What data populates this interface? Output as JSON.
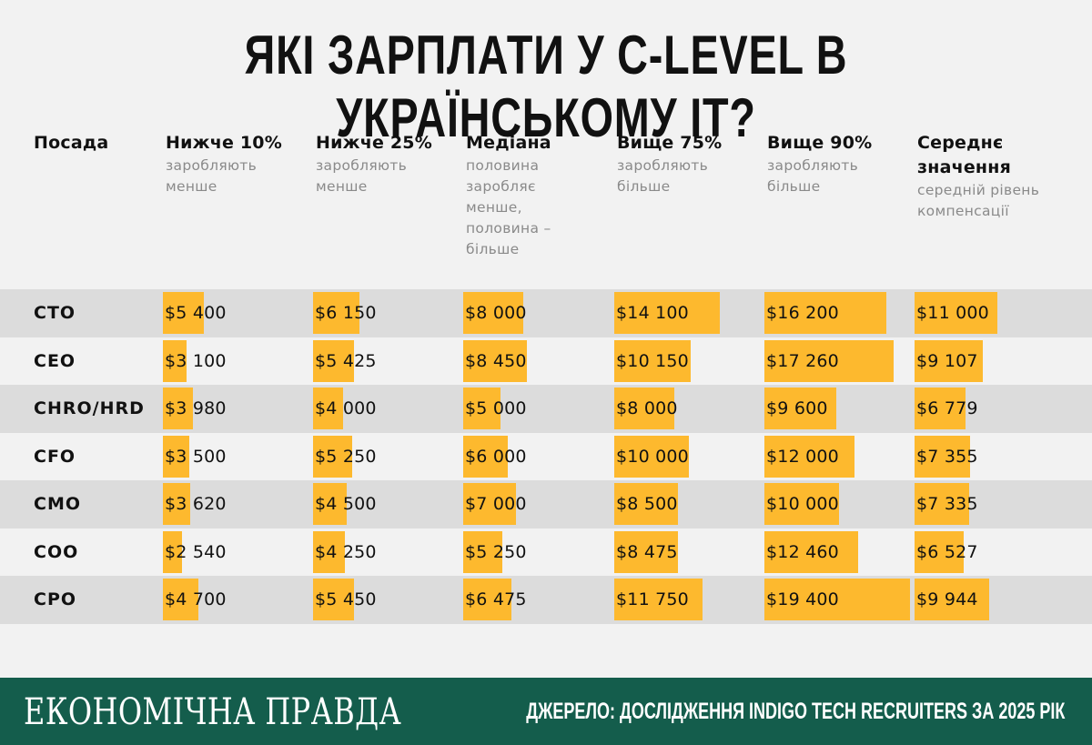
{
  "title": "ЯКІ ЗАРПЛАТИ У C-LEVEL В УКРАЇНСЬКОМУ IT?",
  "columns": [
    {
      "main": "Посада",
      "sub": ""
    },
    {
      "main": "Нижче 10%",
      "sub": "заробляють менше"
    },
    {
      "main": "Нижче 25%",
      "sub": "заробляють менше"
    },
    {
      "main": "Медіана",
      "sub": "половина заробляє менше, половина – більше"
    },
    {
      "main": "Вище 75%",
      "sub": "заробляють більше"
    },
    {
      "main": "Вище 90%",
      "sub": "заробляють більше"
    },
    {
      "main": "Середнє значення",
      "sub": "середній рівень компенсації"
    }
  ],
  "chart_data": {
    "type": "table",
    "title": "ЯКІ ЗАРПЛАТИ У C-LEVEL В УКРАЇНСЬКОМУ IT?",
    "columns": [
      "Посада",
      "Нижче 10%",
      "Нижче 25%",
      "Медіана",
      "Вище 75%",
      "Вище 90%",
      "Середнє значення"
    ],
    "rows": [
      {
        "label": "CTO",
        "values": [
          5400,
          6150,
          8000,
          14100,
          16200,
          11000
        ],
        "display": [
          "$5 400",
          "$6 150",
          "$8 000",
          "$14 100",
          "$16 200",
          "$11 000"
        ]
      },
      {
        "label": "CEO",
        "values": [
          3100,
          5425,
          8450,
          10150,
          17260,
          9107
        ],
        "display": [
          "$3 100",
          "$5 425",
          "$8 450",
          "$10 150",
          "$17 260",
          "$9 107"
        ]
      },
      {
        "label": "CHRO/HRD",
        "values": [
          3980,
          4000,
          5000,
          8000,
          9600,
          6779
        ],
        "display": [
          "$3 980",
          "$4 000",
          "$5 000",
          "$8 000",
          "$9 600",
          "$6 779"
        ]
      },
      {
        "label": "CFO",
        "values": [
          3500,
          5250,
          6000,
          10000,
          12000,
          7355
        ],
        "display": [
          "$3 500",
          "$5 250",
          "$6 000",
          "$10 000",
          "$12 000",
          "$7 355"
        ]
      },
      {
        "label": "CMO",
        "values": [
          3620,
          4500,
          7000,
          8500,
          10000,
          7335
        ],
        "display": [
          "$3 620",
          "$4 500",
          "$7 000",
          "$8 500",
          "$10 000",
          "$7 335"
        ]
      },
      {
        "label": "COO",
        "values": [
          2540,
          4250,
          5250,
          8475,
          12460,
          6527
        ],
        "display": [
          "$2 540",
          "$4 250",
          "$5 250",
          "$8 475",
          "$12 460",
          "$6 527"
        ]
      },
      {
        "label": "CPO",
        "values": [
          4700,
          5450,
          6475,
          11750,
          19400,
          9944
        ],
        "display": [
          "$4 700",
          "$5 450",
          "$6 475",
          "$11 750",
          "$19 400",
          "$9 944"
        ]
      }
    ],
    "bar_scale_max": 19400,
    "bar_color": "#fdb92e",
    "row_shade_color": "#dcdcdc"
  },
  "footer": {
    "logo_text": "ЕКОНОМІЧНА ПРАВДА",
    "source": "ДЖЕРЕЛО: ДОСЛІДЖЕННЯ INDIGO TECH RECRUITERS ЗА 2025 РІК",
    "background": "#145d4c"
  }
}
